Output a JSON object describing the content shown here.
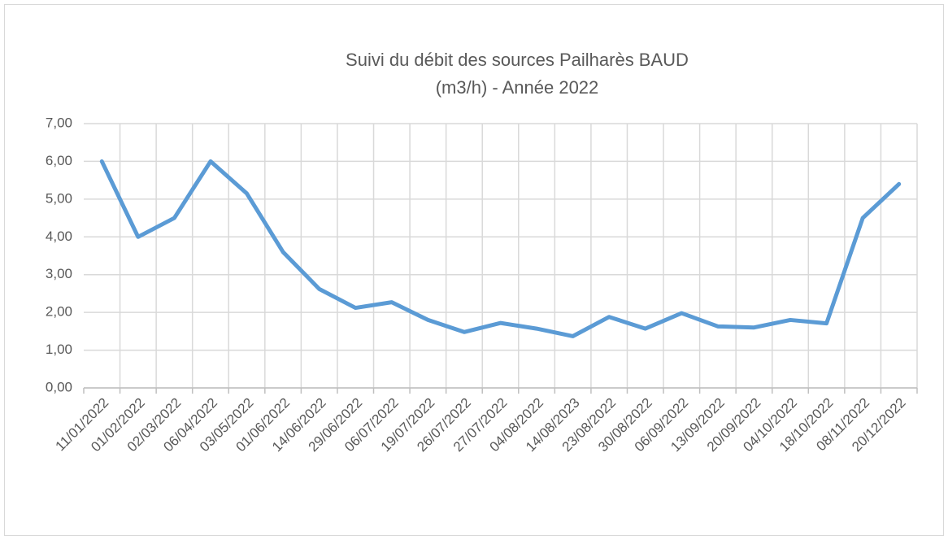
{
  "chart_data": {
    "type": "line",
    "title": [
      "Suivi du débit des sources Pailharès BAUD",
      "(m3/h) - Année 2022"
    ],
    "categories": [
      "11/01/2022",
      "01/02/2022",
      "02/03/2022",
      "06/04/2022",
      "03/05/2022",
      "01/06/2022",
      "14/06/2022",
      "29/06/2022",
      "06/07/2022",
      "19/07/2022",
      "26/07/2022",
      "27/07/2022",
      "04/08/2022",
      "14/08/2023",
      "23/08/2022",
      "30/08/2022",
      "06/09/2022",
      "13/09/2022",
      "20/09/2022",
      "04/10/2022",
      "18/10/2022",
      "08/11/2022",
      "20/12/2022"
    ],
    "values": [
      6.0,
      4.0,
      4.5,
      6.0,
      5.15,
      3.6,
      2.62,
      2.12,
      2.27,
      1.8,
      1.48,
      1.72,
      1.57,
      1.37,
      1.88,
      1.57,
      1.98,
      1.63,
      1.6,
      1.8,
      1.71,
      4.5,
      5.4
    ],
    "color": "#5b9bd5",
    "ylim": [
      0,
      7
    ],
    "yticks": [
      {
        "value": 0,
        "label": "0,00"
      },
      {
        "value": 1,
        "label": "1,00"
      },
      {
        "value": 2,
        "label": "2,00"
      },
      {
        "value": 3,
        "label": "3,00"
      },
      {
        "value": 4,
        "label": "4,00"
      },
      {
        "value": 5,
        "label": "5,00"
      },
      {
        "value": 6,
        "label": "6,00"
      },
      {
        "value": 7,
        "label": "7,00"
      }
    ],
    "grid": true
  }
}
